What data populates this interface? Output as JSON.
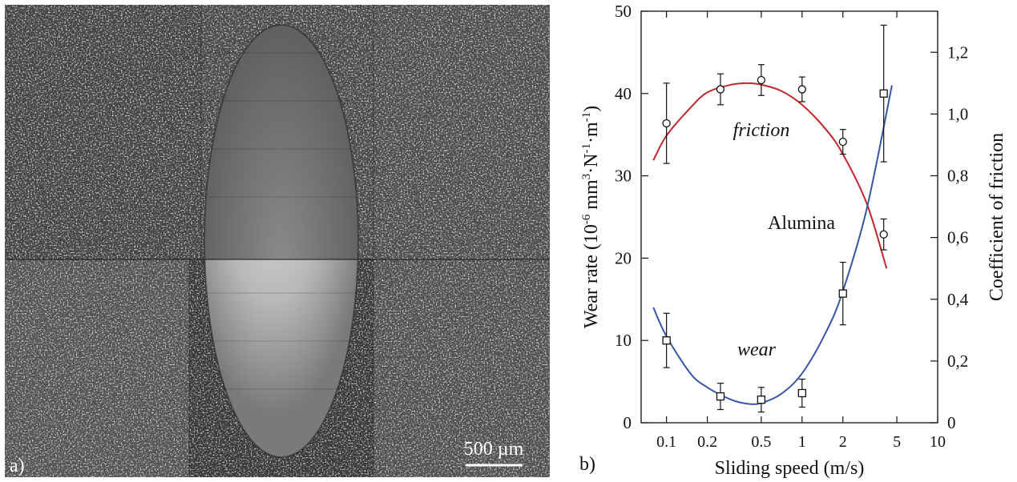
{
  "panel_a": {
    "label": "a)",
    "scale_bar_label": "500 µm"
  },
  "chart_data": {
    "type": "scatter",
    "panel_label": "b)",
    "title": "",
    "xlabel": "Sliding speed (m/s)",
    "ylabel_left": "Wear rate (10",
    "ylabel_left_sup1": "-6",
    "ylabel_left_mid": " mm",
    "ylabel_left_sup2": "3",
    "ylabel_left_mid2": "·N",
    "ylabel_left_sup3": "-1",
    "ylabel_left_mid3": "·m",
    "ylabel_left_sup4": "-1",
    "ylabel_left_end": ")",
    "ylabel_right": "Coefficient of friction",
    "xscale": "log",
    "xlim": [
      0.065,
      10
    ],
    "ylim_left": [
      0,
      50
    ],
    "ylim_right": [
      0,
      1.333
    ],
    "x_ticks": [
      0.1,
      0.2,
      0.5,
      1,
      2,
      5,
      10
    ],
    "x_tick_labels": [
      "0.1",
      "0.2",
      "0.5",
      "1",
      "2",
      "5",
      "10"
    ],
    "y_left_ticks": [
      0,
      10,
      20,
      30,
      40,
      50
    ],
    "y_left_tick_labels": [
      "0",
      "10",
      "20",
      "30",
      "40",
      "50"
    ],
    "y_right_ticks": [
      0,
      0.2,
      0.4,
      0.6,
      0.8,
      1.0,
      1.2
    ],
    "y_right_tick_labels": [
      "0",
      "0,2",
      "0,4",
      "0,6",
      "0,8",
      "1,0",
      "1,2"
    ],
    "inner_label": "Alumina",
    "annotations": {
      "friction": "friction",
      "wear": "wear"
    },
    "series": [
      {
        "name": "friction",
        "axis": "right",
        "marker": "circle",
        "color": "#c0282d",
        "x": [
          0.1,
          0.25,
          0.5,
          1,
          2,
          4
        ],
        "y": [
          0.97,
          1.08,
          1.11,
          1.08,
          0.91,
          0.61
        ],
        "err": [
          0.13,
          0.05,
          0.05,
          0.04,
          0.04,
          0.05
        ]
      },
      {
        "name": "wear",
        "axis": "left",
        "marker": "square",
        "color": "#3756a6",
        "x": [
          0.1,
          0.25,
          0.5,
          1,
          2,
          4
        ],
        "y": [
          10,
          3.2,
          2.8,
          3.6,
          15.7,
          40
        ],
        "err": [
          3.3,
          1.6,
          1.5,
          1.7,
          3.8,
          8.3
        ]
      }
    ],
    "fit_curves": [
      {
        "name": "friction",
        "axis": "right",
        "color": "#c0282d",
        "x": [
          0.08,
          0.1,
          0.15,
          0.2,
          0.3,
          0.4,
          0.5,
          0.7,
          1,
          1.5,
          2,
          3,
          4.2
        ],
        "y": [
          0.85,
          0.93,
          1.02,
          1.07,
          1.095,
          1.1,
          1.095,
          1.075,
          1.03,
          0.95,
          0.87,
          0.71,
          0.5
        ]
      },
      {
        "name": "wear",
        "axis": "left",
        "color": "#3756a6",
        "x": [
          0.08,
          0.1,
          0.15,
          0.2,
          0.3,
          0.4,
          0.5,
          0.7,
          1,
          1.5,
          2,
          3,
          4.6
        ],
        "y": [
          14,
          10.5,
          6,
          4.3,
          2.8,
          2.3,
          2.4,
          3.5,
          6,
          11,
          16,
          26,
          41
        ]
      }
    ]
  },
  "colors": {
    "friction_curve": "#c0282d",
    "wear_curve": "#3756a6"
  }
}
